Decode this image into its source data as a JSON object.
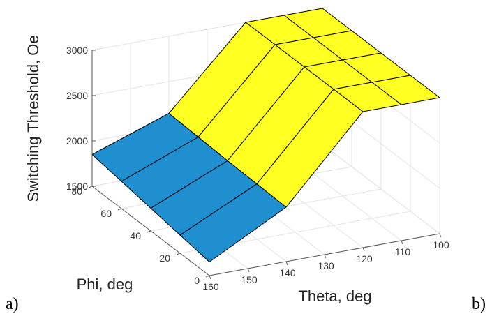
{
  "chart_data": {
    "type": "surface",
    "zlabel": "Switching Threshold, Oe",
    "xlabel": "Theta, deg",
    "ylabel": "Phi, deg",
    "x": [
      100,
      110,
      120,
      140,
      160
    ],
    "y": [
      0,
      20,
      40,
      60,
      80
    ],
    "z": [
      [
        3000,
        3000,
        3000,
        2100,
        1650
      ],
      [
        3000,
        3000,
        3000,
        2110,
        1700
      ],
      [
        3000,
        3000,
        3000,
        2120,
        1750
      ],
      [
        3000,
        3000,
        3000,
        2135,
        1800
      ],
      [
        3000,
        3000,
        3000,
        2150,
        1850
      ]
    ],
    "xlim": [
      100,
      160
    ],
    "xticks": [
      100,
      110,
      120,
      130,
      140,
      150,
      160
    ],
    "ylim": [
      0,
      80
    ],
    "yticks": [
      0,
      20,
      40,
      60,
      80
    ],
    "zlim": [
      1500,
      3000
    ],
    "zticks": [
      1500,
      2000,
      2500,
      3000
    ],
    "colormap": [
      "#1b7bd6",
      "#1f8fd0",
      "#ffff22"
    ],
    "grid": true,
    "left_tag": "a)",
    "right_tag": "b)"
  }
}
